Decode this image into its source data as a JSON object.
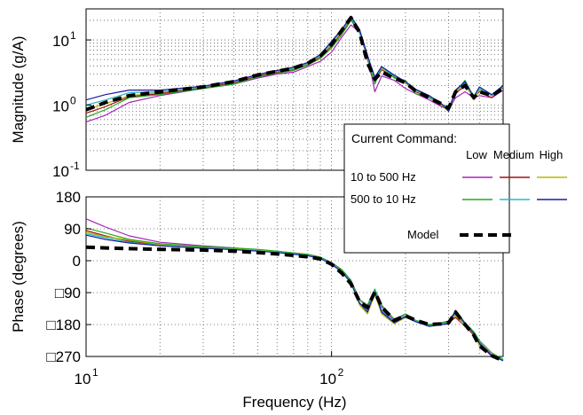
{
  "chart_data": [
    {
      "type": "line",
      "panel": "magnitude",
      "ylabel": "Magnitude (g/A)",
      "yscale": "log",
      "xscale": "log",
      "xlim": [
        10,
        500
      ],
      "ylim": [
        0.1,
        30
      ],
      "yticks": [
        {
          "value": 0.1,
          "base": "10",
          "exp": "-1"
        },
        {
          "value": 1,
          "base": "10",
          "exp": "0"
        },
        {
          "value": 10,
          "base": "10",
          "exp": "1"
        }
      ],
      "grid": true,
      "x": [
        10,
        12,
        15,
        20,
        30,
        40,
        50,
        60,
        70,
        80,
        90,
        100,
        110,
        120,
        130,
        140,
        150,
        160,
        180,
        200,
        220,
        250,
        280,
        300,
        320,
        350,
        380,
        400,
        450,
        500
      ],
      "series": [
        {
          "color": "#aa22bb",
          "values": [
            0.55,
            0.7,
            1.1,
            1.4,
            1.8,
            2.1,
            2.6,
            3.0,
            3.2,
            3.9,
            4.7,
            6.5,
            11,
            17,
            13,
            6.0,
            1.6,
            2.8,
            2.4,
            1.8,
            1.5,
            1.2,
            0.95,
            0.85,
            1.3,
            1.6,
            1.3,
            1.4,
            1.3,
            1.7
          ]
        },
        {
          "color": "#aa1111",
          "values": [
            0.75,
            0.95,
            1.35,
            1.5,
            1.85,
            2.2,
            2.8,
            3.2,
            3.5,
            4.2,
            5.5,
            8.0,
            13,
            21,
            14,
            5.0,
            2.3,
            3.5,
            2.7,
            2.2,
            1.6,
            1.3,
            1.0,
            0.85,
            1.5,
            2.0,
            1.3,
            1.6,
            1.3,
            1.9
          ]
        },
        {
          "color": "#b8b800",
          "values": [
            0.85,
            1.05,
            1.4,
            1.55,
            1.9,
            2.3,
            2.9,
            3.3,
            3.6,
            4.3,
            5.7,
            8.5,
            13.5,
            22,
            14,
            5.2,
            2.4,
            3.7,
            2.8,
            2.2,
            1.7,
            1.3,
            1.0,
            0.8,
            1.6,
            2.1,
            1.2,
            1.7,
            1.4,
            2.0
          ]
        },
        {
          "color": "#22aa22",
          "values": [
            0.65,
            0.85,
            1.3,
            1.45,
            1.8,
            2.1,
            2.7,
            3.1,
            3.4,
            4.1,
            5.2,
            7.5,
            12,
            20,
            13,
            5.5,
            2.1,
            3.9,
            2.6,
            2.4,
            1.5,
            1.3,
            1.05,
            0.9,
            1.6,
            2.4,
            1.3,
            1.8,
            1.4,
            1.9
          ]
        },
        {
          "color": "#22bbcc",
          "values": [
            1.0,
            1.2,
            1.55,
            1.6,
            1.9,
            2.3,
            2.9,
            3.4,
            3.7,
            4.4,
            5.8,
            9.0,
            14,
            22,
            14,
            5.5,
            2.6,
            3.8,
            2.8,
            2.3,
            1.7,
            1.35,
            1.05,
            0.85,
            1.7,
            2.2,
            1.3,
            1.8,
            1.4,
            2.0
          ]
        },
        {
          "color": "#1a1aa0",
          "values": [
            1.2,
            1.45,
            1.7,
            1.7,
            1.95,
            2.35,
            2.95,
            3.4,
            3.8,
            4.5,
            6.0,
            9.5,
            14.5,
            23,
            14.5,
            5.8,
            2.7,
            3.9,
            2.9,
            2.3,
            1.75,
            1.4,
            1.05,
            0.8,
            1.7,
            2.3,
            1.35,
            1.9,
            1.45,
            2.0
          ]
        },
        {
          "color": "#000000",
          "dashed": true,
          "values": [
            0.85,
            1.1,
            1.4,
            1.6,
            1.9,
            2.3,
            2.9,
            3.3,
            3.7,
            4.4,
            5.7,
            8.5,
            14,
            22,
            13,
            4.5,
            2.5,
            3.2,
            2.6,
            2.2,
            1.65,
            1.3,
            1.05,
            0.9,
            1.6,
            2.0,
            1.3,
            1.6,
            1.4,
            1.8
          ]
        }
      ]
    },
    {
      "type": "line",
      "panel": "phase",
      "xlabel": "Frequency (Hz)",
      "ylabel": "Phase (degrees)",
      "xscale": "log",
      "xlim": [
        10,
        500
      ],
      "ylim": [
        -270,
        180
      ],
      "yticks": [
        {
          "value": 180,
          "label": "180"
        },
        {
          "value": 90,
          "label": "90"
        },
        {
          "value": 0,
          "label": "0"
        },
        {
          "value": -90,
          "label": "□90"
        },
        {
          "value": -180,
          "label": "□180"
        },
        {
          "value": -270,
          "label": "□270"
        }
      ],
      "xticks": [
        {
          "value": 10,
          "base": "10",
          "exp": "1"
        },
        {
          "value": 100,
          "base": "10",
          "exp": "2"
        }
      ],
      "grid": true,
      "x": [
        10,
        12,
        15,
        20,
        30,
        40,
        50,
        60,
        70,
        80,
        90,
        100,
        110,
        120,
        130,
        140,
        150,
        160,
        180,
        200,
        220,
        250,
        280,
        300,
        320,
        350,
        380,
        400,
        450,
        500
      ],
      "series": [
        {
          "color": "#aa22bb",
          "values": [
            118,
            95,
            70,
            52,
            42,
            36,
            30,
            26,
            22,
            18,
            10,
            -5,
            -25,
            -55,
            -110,
            -130,
            -90,
            -130,
            -170,
            -150,
            -170,
            -180,
            -175,
            -170,
            -150,
            -180,
            -205,
            -230,
            -265,
            -280
          ]
        },
        {
          "color": "#aa1111",
          "values": [
            85,
            70,
            55,
            45,
            38,
            34,
            29,
            25,
            20,
            16,
            8,
            -8,
            -30,
            -60,
            -120,
            -140,
            -85,
            -145,
            -175,
            -155,
            -170,
            -182,
            -178,
            -175,
            -160,
            -185,
            -210,
            -235,
            -270,
            -280
          ]
        },
        {
          "color": "#b8b800",
          "values": [
            80,
            68,
            58,
            46,
            37,
            33,
            30,
            26,
            21,
            17,
            8,
            -8,
            -28,
            -62,
            -125,
            -150,
            -95,
            -150,
            -178,
            -160,
            -170,
            -185,
            -180,
            -178,
            -155,
            -185,
            -205,
            -240,
            -265,
            -280
          ]
        },
        {
          "color": "#22aa22",
          "values": [
            92,
            78,
            60,
            48,
            40,
            36,
            32,
            27,
            22,
            18,
            10,
            -6,
            -25,
            -55,
            -110,
            -125,
            -80,
            -125,
            -165,
            -150,
            -168,
            -180,
            -175,
            -172,
            -140,
            -175,
            -200,
            -225,
            -260,
            -278
          ]
        },
        {
          "color": "#22bbcc",
          "values": [
            76,
            65,
            52,
            43,
            36,
            32,
            28,
            24,
            19,
            15,
            7,
            -8,
            -30,
            -60,
            -118,
            -140,
            -85,
            -140,
            -172,
            -155,
            -170,
            -183,
            -178,
            -176,
            -145,
            -180,
            -205,
            -230,
            -268,
            -280
          ]
        },
        {
          "color": "#1a1aa0",
          "values": [
            72,
            60,
            50,
            42,
            35,
            31,
            27,
            23,
            18,
            14,
            6,
            -10,
            -32,
            -62,
            -120,
            -145,
            -88,
            -145,
            -175,
            -158,
            -172,
            -185,
            -180,
            -178,
            -140,
            -178,
            -205,
            -232,
            -268,
            -282
          ]
        },
        {
          "color": "#000000",
          "dashed": true,
          "values": [
            38,
            36,
            34,
            32,
            30,
            27,
            23,
            19,
            15,
            11,
            5,
            -10,
            -35,
            -65,
            -115,
            -132,
            -88,
            -130,
            -168,
            -155,
            -168,
            -180,
            -178,
            -175,
            -145,
            -180,
            -210,
            -240,
            -268,
            -282
          ]
        }
      ]
    }
  ],
  "legend": {
    "title": "Current Command:",
    "columns": [
      "Low",
      "Medium",
      "High"
    ],
    "rows": [
      {
        "label": "10 to 500 Hz",
        "colors": [
          "#aa22bb",
          "#aa1111",
          "#b8b800"
        ]
      },
      {
        "label": "500 to 10 Hz",
        "colors": [
          "#22aa22",
          "#22bbcc",
          "#1a1aa0"
        ]
      }
    ],
    "model_label": "Model",
    "placement": "right"
  }
}
